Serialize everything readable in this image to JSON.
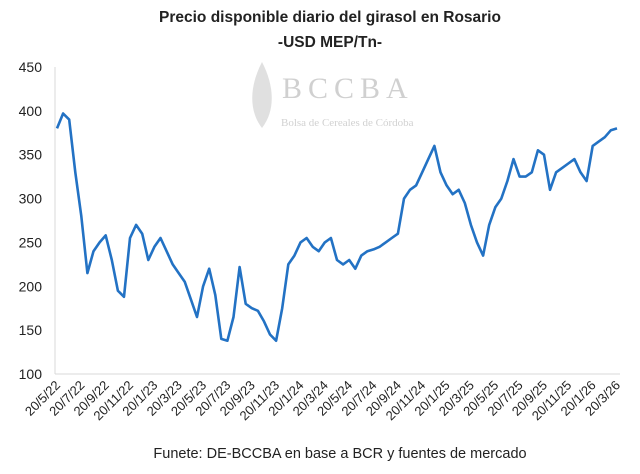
{
  "chart_data": {
    "type": "line",
    "title": "Precio disponible diario del girasol en Rosario",
    "subtitle": "-USD MEP/Tn-",
    "source": "Funete: DE-BCCBA en base a BCR y fuentes de mercado",
    "logo_text": "BCCBA",
    "logo_subtext": "Bolsa de Cereales de Córdoba",
    "categories": [
      "20/5/22",
      null,
      null,
      null,
      "20/7/22",
      null,
      null,
      null,
      "20/9/22",
      null,
      null,
      null,
      "20/11/22",
      null,
      null,
      null,
      "20/1/23",
      null,
      null,
      null,
      "20/3/23",
      null,
      null,
      null,
      "20/5/23",
      null,
      null,
      null,
      "20/7/23",
      null,
      null,
      null,
      "20/9/23",
      null,
      null,
      null,
      "20/11/23",
      null,
      null,
      null,
      "20/1/24",
      null,
      null,
      null,
      "20/3/24",
      null,
      null,
      null,
      "20/5/24",
      null,
      null,
      null,
      "20/7/24",
      null,
      null,
      null,
      "20/9/24",
      null,
      null,
      null,
      "20/11/24",
      null,
      null,
      null,
      "20/1/25",
      null,
      null,
      null,
      "20/3/25",
      null,
      null,
      null,
      "20/5/25",
      null,
      null,
      null,
      "20/7/25",
      null,
      null,
      null,
      "20/9/25",
      null,
      null,
      null,
      "20/11/25",
      null,
      null,
      null,
      "20/1/26",
      null,
      null,
      null,
      "20/3/26"
    ],
    "series": [
      {
        "name": "Precio",
        "color": "#2372c4",
        "values": [
          380,
          397,
          390,
          330,
          280,
          215,
          240,
          250,
          258,
          230,
          195,
          188,
          255,
          270,
          260,
          230,
          245,
          255,
          240,
          225,
          215,
          205,
          185,
          165,
          200,
          220,
          190,
          140,
          138,
          165,
          222,
          180,
          175,
          172,
          160,
          145,
          138,
          175,
          225,
          235,
          250,
          255,
          245,
          240,
          250,
          255,
          230,
          225,
          230,
          220,
          235,
          240,
          242,
          245,
          250,
          255,
          260,
          300,
          310,
          315,
          330,
          345,
          360,
          330,
          315,
          305,
          310,
          295,
          270,
          250,
          235,
          270,
          290,
          300,
          320,
          345,
          325,
          325,
          330,
          355,
          350,
          310,
          330,
          335,
          340,
          345,
          330,
          320,
          360,
          365,
          370,
          378,
          380
        ]
      }
    ],
    "ylim": [
      100,
      450
    ],
    "yticks": [
      100,
      150,
      200,
      250,
      300,
      350,
      400,
      450
    ],
    "grid": false
  }
}
